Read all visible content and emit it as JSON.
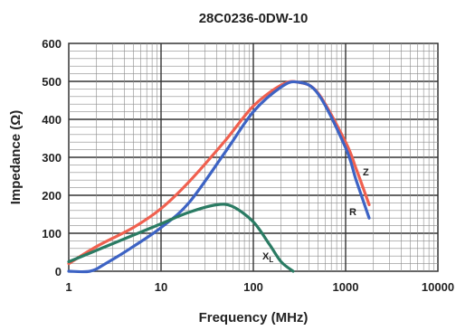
{
  "chart_data": {
    "type": "line",
    "title": "28C0236-0DW-10",
    "xlabel": "Frequency (MHz)",
    "ylabel": "Impedance (Ω)",
    "x_scale": "log",
    "xlim": [
      1,
      10000
    ],
    "ylim": [
      0,
      600
    ],
    "x_ticks": [
      "1",
      "10",
      "100",
      "1000",
      "10000"
    ],
    "y_ticks": [
      "0",
      "100",
      "200",
      "300",
      "400",
      "500",
      "600"
    ],
    "grid": true,
    "legend": "none",
    "series": [
      {
        "name": "Z",
        "color": "#f0604f",
        "points": [
          [
            1,
            20
          ],
          [
            2,
            65
          ],
          [
            5,
            115
          ],
          [
            10,
            165
          ],
          [
            20,
            235
          ],
          [
            50,
            345
          ],
          [
            100,
            435
          ],
          [
            200,
            490
          ],
          [
            300,
            498
          ],
          [
            500,
            470
          ],
          [
            1000,
            340
          ],
          [
            1300,
            270
          ],
          [
            1800,
            175
          ]
        ]
      },
      {
        "name": "R",
        "color": "#3d63c4",
        "points": [
          [
            1,
            0
          ],
          [
            1.7,
            0
          ],
          [
            2.5,
            20
          ],
          [
            5,
            65
          ],
          [
            10,
            115
          ],
          [
            20,
            180
          ],
          [
            50,
            315
          ],
          [
            100,
            420
          ],
          [
            200,
            485
          ],
          [
            300,
            498
          ],
          [
            500,
            468
          ],
          [
            1000,
            325
          ],
          [
            1300,
            240
          ],
          [
            1800,
            140
          ]
        ]
      },
      {
        "name": "XL",
        "color": "#2a7b63",
        "points": [
          [
            1,
            25
          ],
          [
            2,
            55
          ],
          [
            5,
            95
          ],
          [
            10,
            125
          ],
          [
            20,
            155
          ],
          [
            40,
            175
          ],
          [
            60,
            170
          ],
          [
            100,
            130
          ],
          [
            150,
            70
          ],
          [
            200,
            25
          ],
          [
            270,
            0
          ]
        ]
      }
    ],
    "series_labels": {
      "z": "Z",
      "r": "R",
      "xl_main": "X",
      "xl_sub": "L"
    }
  }
}
